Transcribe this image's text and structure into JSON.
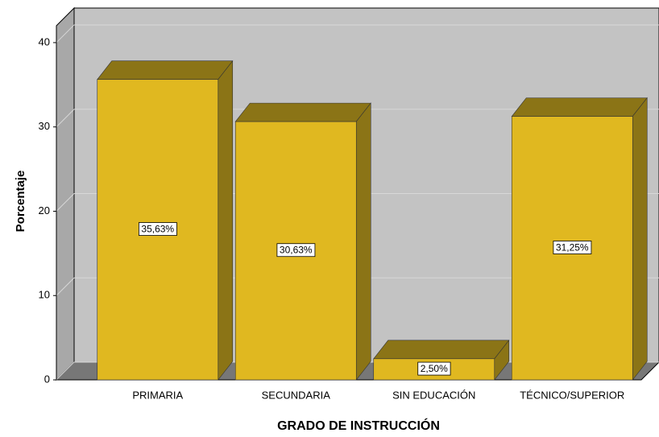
{
  "chart_data": {
    "type": "bar3d",
    "categories": [
      "PRIMARIA",
      "SECUNDARIA",
      "SIN EDUCACIÓN",
      "TÉCNICO/SUPERIOR"
    ],
    "values": [
      35.63,
      30.63,
      2.5,
      31.25
    ],
    "value_labels": [
      "35,63%",
      "30,63%",
      "2,50%",
      "31,25%"
    ],
    "color": "#e0b820",
    "xlabel": "GRADO DE INSTRUCCIÓN",
    "ylabel": "Porcentaje",
    "ylim": [
      0,
      42
    ],
    "yticks": [
      0,
      10,
      20,
      30,
      40
    ],
    "grid": true
  }
}
